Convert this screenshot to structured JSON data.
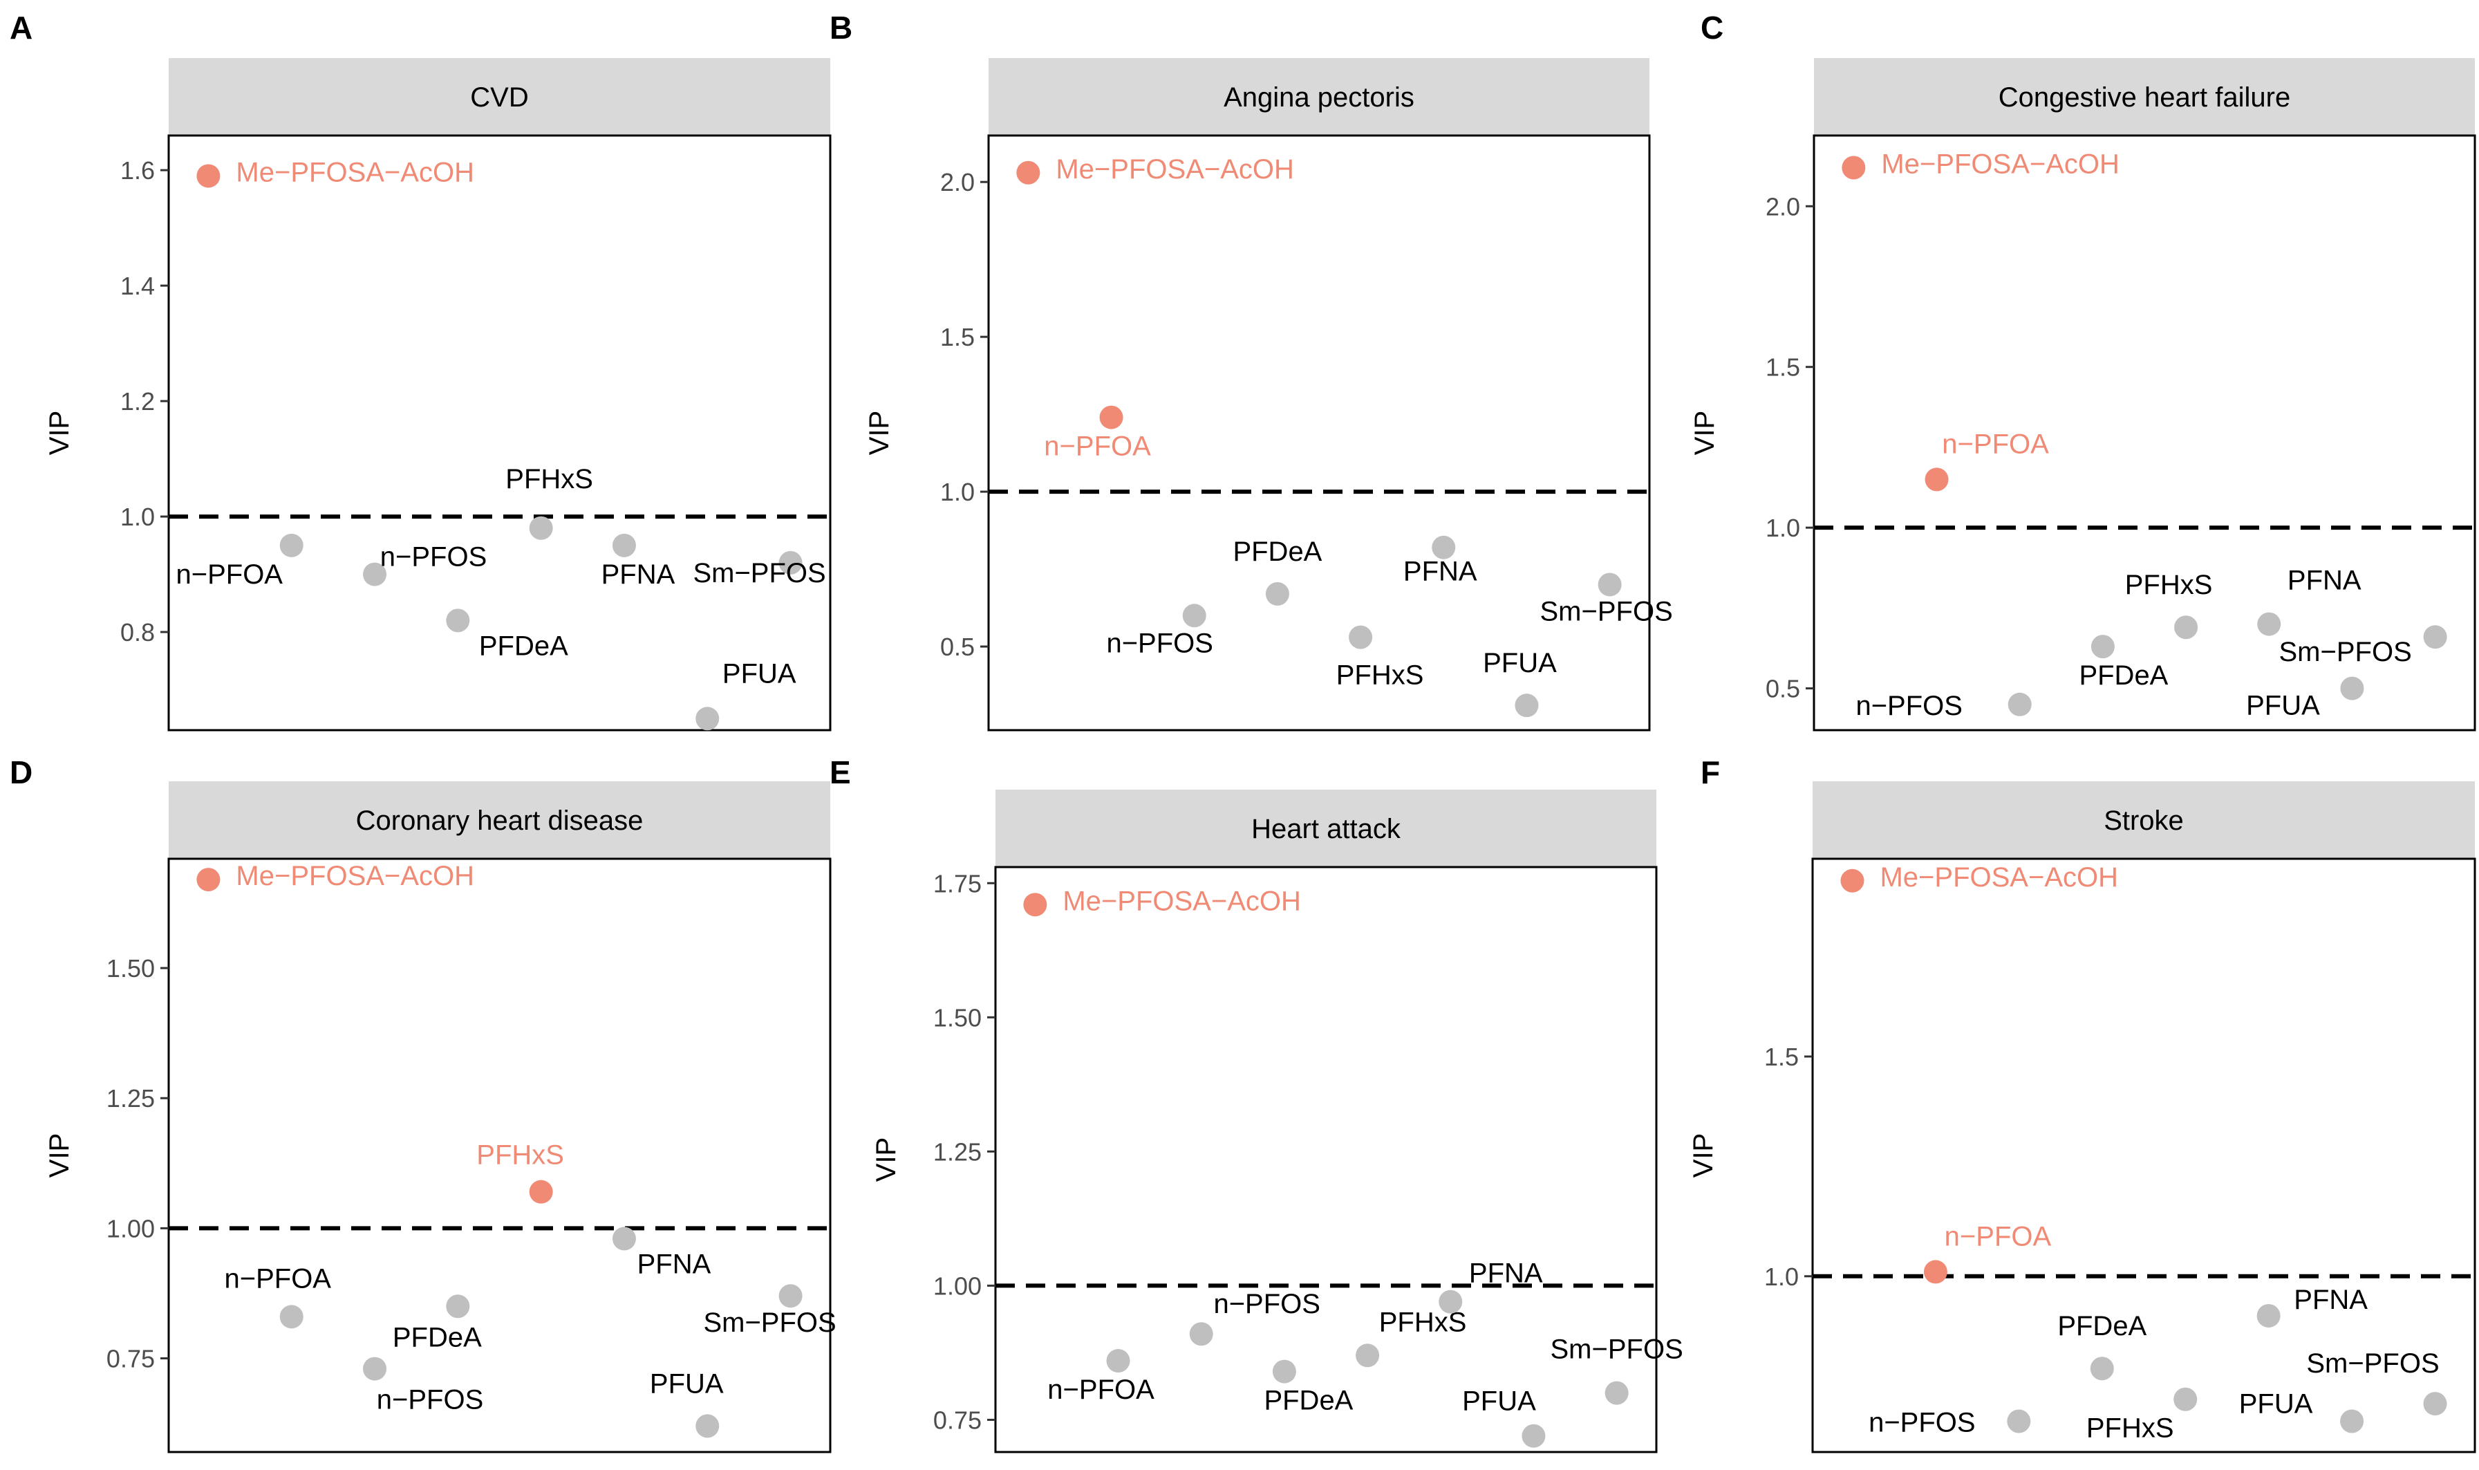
{
  "colors": {
    "highlight": "#f08a74",
    "normal": "#bfbfbf",
    "highlight_text": "#f08a74",
    "normal_text": "#000000",
    "strip": "#d9d9d9"
  },
  "chart_data": [
    {
      "type": "scatter",
      "panel": "A",
      "title": "CVD",
      "xlabel": "",
      "ylabel": "VIP",
      "ylim": [
        0.63,
        1.66
      ],
      "yticks": [
        0.8,
        1.0,
        1.2,
        1.4,
        1.6
      ],
      "ytick_labels": [
        "0.8",
        "1.0",
        "1.2",
        "1.4",
        "1.6"
      ],
      "threshold": 1.0,
      "points": [
        {
          "label": "Me−PFOSA−AcOH",
          "x": 1,
          "y": 1.59,
          "highlight": true
        },
        {
          "label": "n−PFOA",
          "x": 2,
          "y": 0.95,
          "highlight": false
        },
        {
          "label": "n−PFOS",
          "x": 3,
          "y": 0.9,
          "highlight": false
        },
        {
          "label": "PFDeA",
          "x": 4,
          "y": 0.82,
          "highlight": false
        },
        {
          "label": "PFHxS",
          "x": 5,
          "y": 0.98,
          "highlight": false
        },
        {
          "label": "PFNA",
          "x": 6,
          "y": 0.95,
          "highlight": false
        },
        {
          "label": "PFUA",
          "x": 7,
          "y": 0.65,
          "highlight": false
        },
        {
          "label": "Sm−PFOS",
          "x": 8,
          "y": 0.92,
          "highlight": false
        }
      ]
    },
    {
      "type": "scatter",
      "panel": "B",
      "title": "Angina pectoris",
      "xlabel": "",
      "ylabel": "VIP",
      "ylim": [
        0.23,
        2.15
      ],
      "yticks": [
        0.5,
        1.0,
        1.5,
        2.0
      ],
      "ytick_labels": [
        "0.5",
        "1.0",
        "1.5",
        "2.0"
      ],
      "threshold": 1.0,
      "points": [
        {
          "label": "Me−PFOSA−AcOH",
          "x": 1,
          "y": 2.03,
          "highlight": true
        },
        {
          "label": "n−PFOA",
          "x": 2,
          "y": 1.24,
          "highlight": true
        },
        {
          "label": "n−PFOS",
          "x": 3,
          "y": 0.6,
          "highlight": false
        },
        {
          "label": "PFDeA",
          "x": 4,
          "y": 0.67,
          "highlight": false
        },
        {
          "label": "PFHxS",
          "x": 5,
          "y": 0.53,
          "highlight": false
        },
        {
          "label": "PFNA",
          "x": 6,
          "y": 0.82,
          "highlight": false
        },
        {
          "label": "PFUA",
          "x": 7,
          "y": 0.31,
          "highlight": false
        },
        {
          "label": "Sm−PFOS",
          "x": 8,
          "y": 0.7,
          "highlight": false
        }
      ]
    },
    {
      "type": "scatter",
      "panel": "C",
      "title": "Congestive heart failure",
      "xlabel": "",
      "ylabel": "VIP",
      "ylim": [
        0.37,
        2.22
      ],
      "yticks": [
        0.5,
        1.0,
        1.5,
        2.0
      ],
      "ytick_labels": [
        "0.5",
        "1.0",
        "1.5",
        "2.0"
      ],
      "threshold": 1.0,
      "points": [
        {
          "label": "Me−PFOSA−AcOH",
          "x": 1,
          "y": 2.12,
          "highlight": true
        },
        {
          "label": "n−PFOA",
          "x": 2,
          "y": 1.15,
          "highlight": true
        },
        {
          "label": "n−PFOS",
          "x": 3,
          "y": 0.45,
          "highlight": false
        },
        {
          "label": "PFDeA",
          "x": 4,
          "y": 0.63,
          "highlight": false
        },
        {
          "label": "PFHxS",
          "x": 5,
          "y": 0.69,
          "highlight": false
        },
        {
          "label": "PFNA",
          "x": 6,
          "y": 0.7,
          "highlight": false
        },
        {
          "label": "PFUA",
          "x": 7,
          "y": 0.5,
          "highlight": false
        },
        {
          "label": "Sm−PFOS",
          "x": 8,
          "y": 0.66,
          "highlight": false
        }
      ]
    },
    {
      "type": "scatter",
      "panel": "D",
      "title": "Coronary heart disease",
      "xlabel": "",
      "ylabel": "VIP",
      "ylim": [
        0.57,
        1.71
      ],
      "yticks": [
        0.75,
        1.0,
        1.25,
        1.5
      ],
      "ytick_labels": [
        "0.75",
        "1.00",
        "1.25",
        "1.50"
      ],
      "threshold": 1.0,
      "points": [
        {
          "label": "Me−PFOSA−AcOH",
          "x": 1,
          "y": 1.67,
          "highlight": true
        },
        {
          "label": "n−PFOA",
          "x": 2,
          "y": 0.83,
          "highlight": false
        },
        {
          "label": "n−PFOS",
          "x": 3,
          "y": 0.73,
          "highlight": false
        },
        {
          "label": "PFDeA",
          "x": 4,
          "y": 0.85,
          "highlight": false
        },
        {
          "label": "PFHxS",
          "x": 5,
          "y": 1.07,
          "highlight": true
        },
        {
          "label": "PFNA",
          "x": 6,
          "y": 0.98,
          "highlight": false
        },
        {
          "label": "PFUA",
          "x": 7,
          "y": 0.62,
          "highlight": false
        },
        {
          "label": "Sm−PFOS",
          "x": 8,
          "y": 0.87,
          "highlight": false
        }
      ]
    },
    {
      "type": "scatter",
      "panel": "E",
      "title": "Heart attack",
      "xlabel": "",
      "ylabel": "VIP",
      "ylim": [
        0.69,
        1.78
      ],
      "yticks": [
        0.75,
        1.0,
        1.25,
        1.5,
        1.75
      ],
      "ytick_labels": [
        "0.75",
        "1.00",
        "1.25",
        "1.50",
        "1.75"
      ],
      "threshold": 1.0,
      "points": [
        {
          "label": "Me−PFOSA−AcOH",
          "x": 1,
          "y": 1.71,
          "highlight": true
        },
        {
          "label": "n−PFOA",
          "x": 2,
          "y": 0.86,
          "highlight": false
        },
        {
          "label": "n−PFOS",
          "x": 3,
          "y": 0.91,
          "highlight": false
        },
        {
          "label": "PFDeA",
          "x": 4,
          "y": 0.84,
          "highlight": false
        },
        {
          "label": "PFHxS",
          "x": 5,
          "y": 0.87,
          "highlight": false
        },
        {
          "label": "PFNA",
          "x": 6,
          "y": 0.97,
          "highlight": false
        },
        {
          "label": "PFUA",
          "x": 7,
          "y": 0.72,
          "highlight": false
        },
        {
          "label": "Sm−PFOS",
          "x": 8,
          "y": 0.8,
          "highlight": false
        }
      ]
    },
    {
      "type": "scatter",
      "panel": "F",
      "title": "Stroke",
      "xlabel": "",
      "ylabel": "VIP",
      "ylim": [
        0.6,
        1.95
      ],
      "yticks": [
        1.0,
        1.5
      ],
      "ytick_labels": [
        "1.0",
        "1.5"
      ],
      "threshold": 1.0,
      "points": [
        {
          "label": "Me−PFOSA−AcOH",
          "x": 1,
          "y": 1.9,
          "highlight": true
        },
        {
          "label": "n−PFOA",
          "x": 2,
          "y": 1.01,
          "highlight": true
        },
        {
          "label": "n−PFOS",
          "x": 3,
          "y": 0.67,
          "highlight": false
        },
        {
          "label": "PFDeA",
          "x": 4,
          "y": 0.79,
          "highlight": false
        },
        {
          "label": "PFHxS",
          "x": 5,
          "y": 0.72,
          "highlight": false
        },
        {
          "label": "PFNA",
          "x": 6,
          "y": 0.91,
          "highlight": false
        },
        {
          "label": "PFUA",
          "x": 7,
          "y": 0.67,
          "highlight": false
        },
        {
          "label": "Sm−PFOS",
          "x": 8,
          "y": 0.71,
          "highlight": false
        }
      ]
    }
  ]
}
